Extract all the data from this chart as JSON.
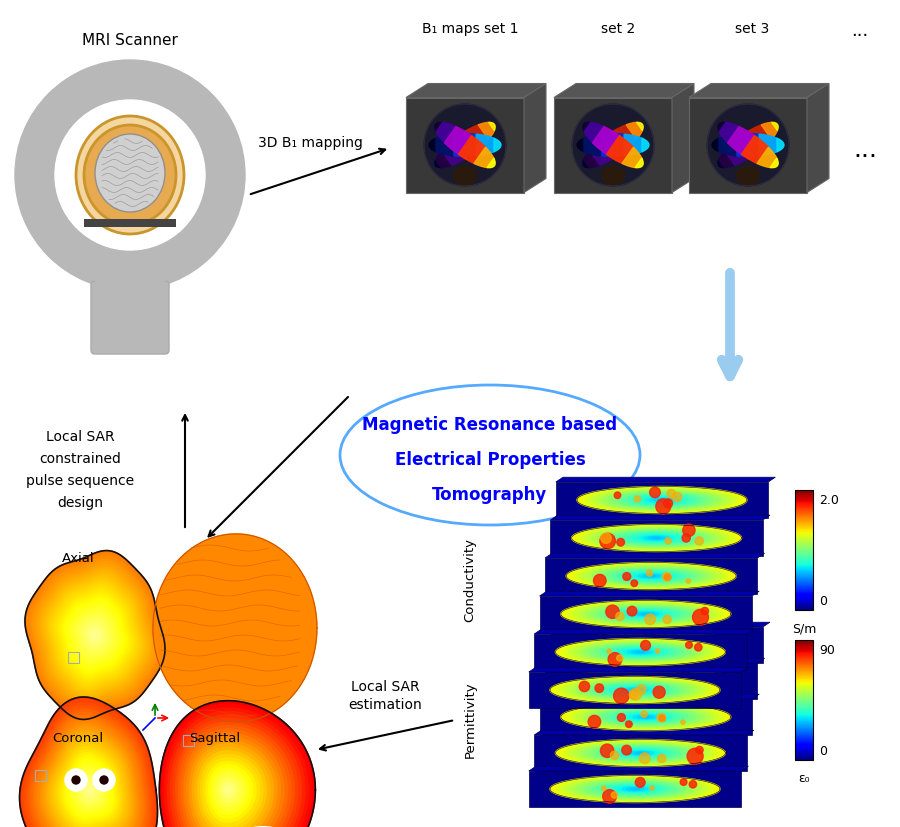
{
  "background_color": "#ffffff",
  "mri_scanner_label": "MRI Scanner",
  "b1_maps_labels": [
    "B₁ maps set 1",
    "set 2",
    "set 3",
    "..."
  ],
  "arrow_3d_b1": "3D B₁ mapping",
  "center_ellipse_text": [
    "Magnetic Resonance based",
    "Electrical Properties",
    "Tomography"
  ],
  "center_ellipse_color": "#55aaff",
  "local_sar_constrained_text": [
    "Local SAR",
    "constrained",
    "pulse sequence",
    "design"
  ],
  "local_sar_estimation_text": [
    "Local SAR",
    "estimation"
  ],
  "axial_label": "Axial",
  "coronal_label": "Coronal",
  "sagittal_label": "Sagittal",
  "conductivity_label": "Conductivity",
  "permittivity_label": "Permittivity",
  "colorbar1_max": "2.0",
  "colorbar1_min": "0",
  "colorbar1_unit": "S/m",
  "colorbar2_max": "90",
  "colorbar2_min": "0",
  "colorbar2_unit": "ε₀",
  "dots_label": "...",
  "scanner_gray": "#b8b8b8",
  "scanner_dark": "#888888",
  "box_dark": "#383838",
  "box_mid": "#4a4a4a",
  "box_light": "#565656"
}
